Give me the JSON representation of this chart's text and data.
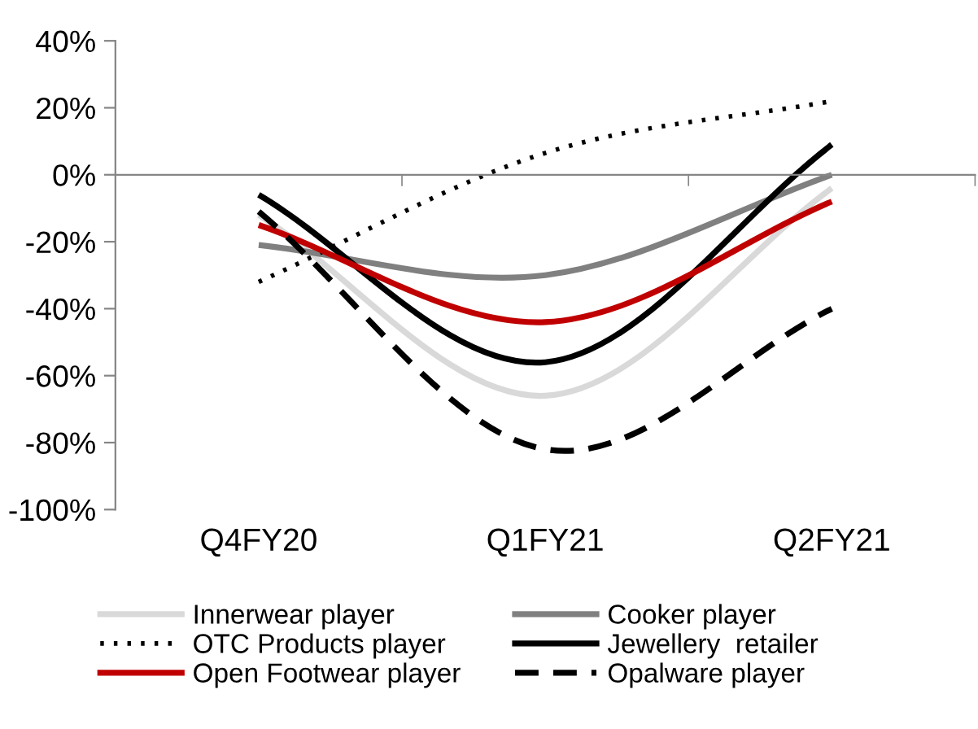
{
  "chart_data": {
    "type": "line",
    "categories": [
      "Q4FY20",
      "Q1FY21",
      "Q2FY21"
    ],
    "series": [
      {
        "name": "Innerwear player",
        "color": "#d9d9d9",
        "line_style": "solid",
        "values": [
          -0.12,
          -0.66,
          -0.04
        ]
      },
      {
        "name": "Cooker player",
        "color": "#808080",
        "line_style": "solid",
        "values": [
          -0.21,
          -0.3,
          0.0
        ]
      },
      {
        "name": "OTC Products player",
        "color": "#000000",
        "line_style": "dotted",
        "values": [
          -0.32,
          0.065,
          0.22
        ]
      },
      {
        "name": "Jewellery  retailer",
        "color": "#000000",
        "line_style": "solid",
        "values": [
          -0.06,
          -0.56,
          0.09
        ]
      },
      {
        "name": "Open Footwear player",
        "color": "#c00000",
        "line_style": "solid",
        "values": [
          -0.15,
          -0.44,
          -0.08
        ]
      },
      {
        "name": "Opalware player",
        "color": "#000000",
        "line_style": "dashed",
        "values": [
          -0.11,
          -0.82,
          -0.4
        ]
      }
    ],
    "ylim": [
      -1.0,
      0.4
    ],
    "yticks": [
      {
        "value": -1.0,
        "label": "-100%"
      },
      {
        "value": -0.8,
        "label": "-80%"
      },
      {
        "value": -0.6,
        "label": "-60%"
      },
      {
        "value": -0.4,
        "label": "-40%"
      },
      {
        "value": -0.2,
        "label": "-20%"
      },
      {
        "value": 0,
        "label": "0%"
      },
      {
        "value": 0.2,
        "label": "20%"
      },
      {
        "value": 0.4,
        "label": "40%"
      }
    ],
    "legend": "bottom",
    "marker": "none"
  }
}
